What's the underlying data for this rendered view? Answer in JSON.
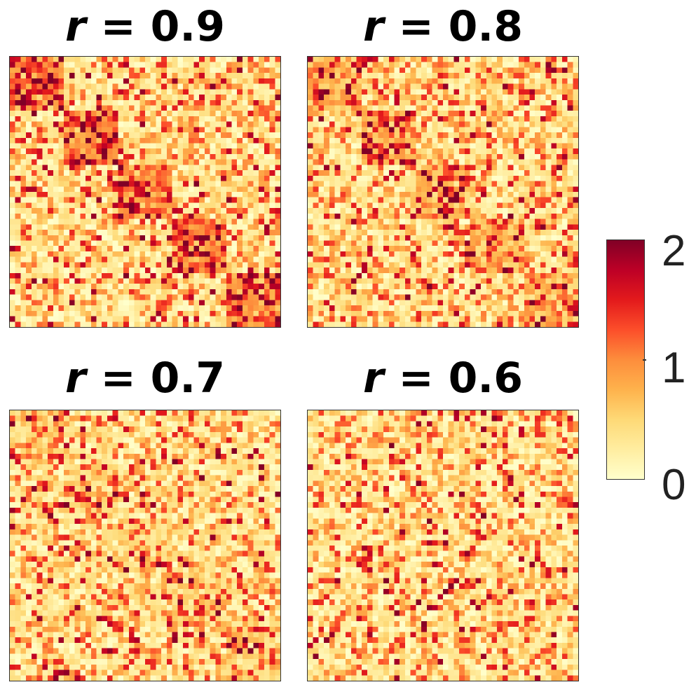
{
  "chart_data": {
    "type": "heatmap",
    "grid_size": 50,
    "panels": [
      {
        "title_var": "r",
        "title_value": "= 0.9",
        "r": 0.9,
        "num_blocks": 5
      },
      {
        "title_var": "r",
        "title_value": "= 0.8",
        "r": 0.8,
        "num_blocks": 5
      },
      {
        "title_var": "r",
        "title_value": "= 0.7",
        "r": 0.7,
        "num_blocks": 5
      },
      {
        "title_var": "r",
        "title_value": "= 0.6",
        "r": 0.6,
        "num_blocks": 5
      }
    ],
    "colorbar": {
      "min": 0,
      "max": 2,
      "tick_labels": [
        "2",
        "1",
        "0"
      ],
      "colormap": "YlOrRd",
      "colors": [
        "#ffffcc",
        "#ffeda0",
        "#fed976",
        "#feb24c",
        "#fd8d3c",
        "#fc4e2a",
        "#e31a1c",
        "#bd0026",
        "#800026"
      ]
    }
  }
}
